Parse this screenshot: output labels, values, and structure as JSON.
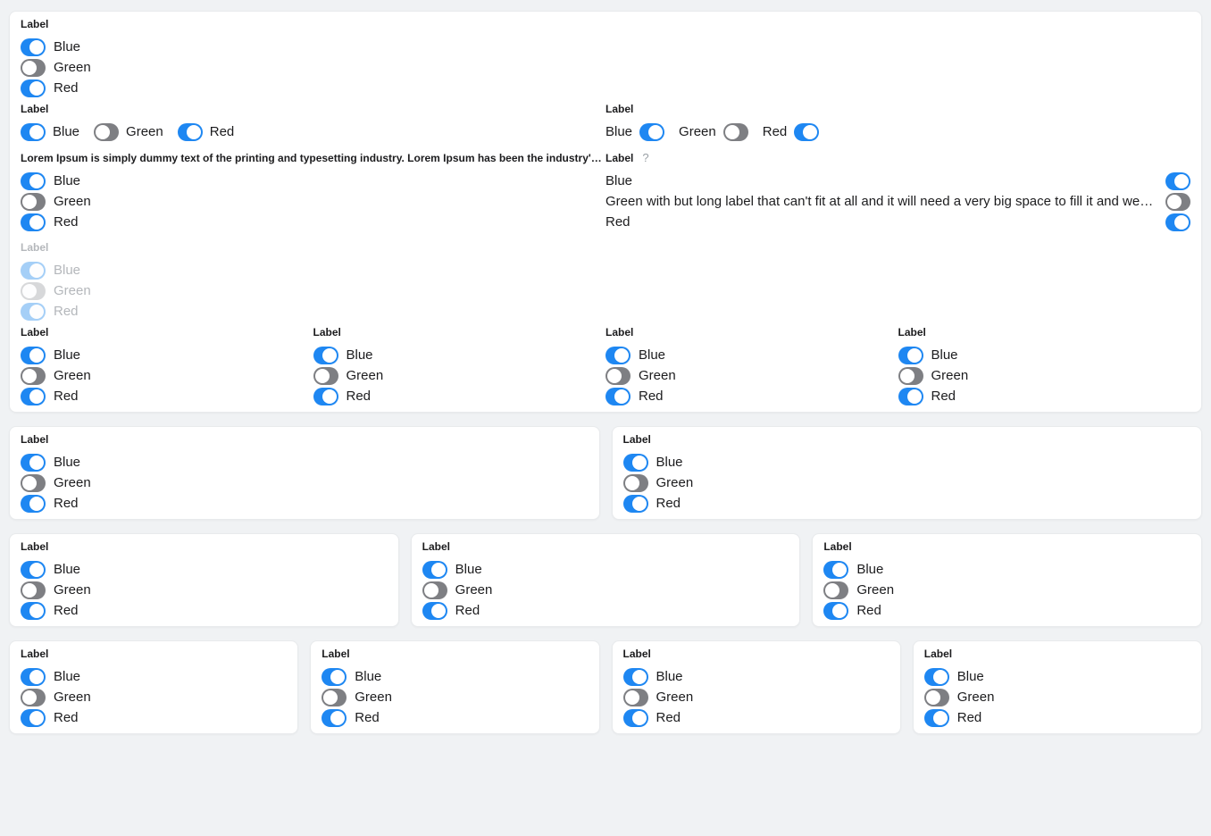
{
  "colors": {
    "page_bg": "#f0f2f4",
    "card_bg": "#ffffff",
    "card_border": "#e8eaec",
    "toggle_on": "#1e87f2",
    "toggle_off": "#7e7f83",
    "toggle_on_disabled": "#a5cff7",
    "toggle_off_disabled": "#d7d8da",
    "knob": "#ffffff",
    "text": "#1c1c1e",
    "text_disabled": "#b4b7bb",
    "help": "#9aa0a6"
  },
  "strings": {
    "group_label": "Label",
    "blue": "Blue",
    "green": "Green",
    "red": "Red",
    "lorem_label": "Lorem Ipsum is simply dummy text of the printing and typesetting industry. Lorem Ipsum has been the industry's stand…",
    "green_long_label": "Green with but long label that can't fit at all and it will need a very big space to fill it and we ca…",
    "help_icon": "?"
  },
  "states": {
    "blue": "on",
    "green": "off",
    "red": "on",
    "blue_disabled": "on disabled",
    "green_disabled": "off disabled",
    "red_disabled": "on disabled"
  }
}
